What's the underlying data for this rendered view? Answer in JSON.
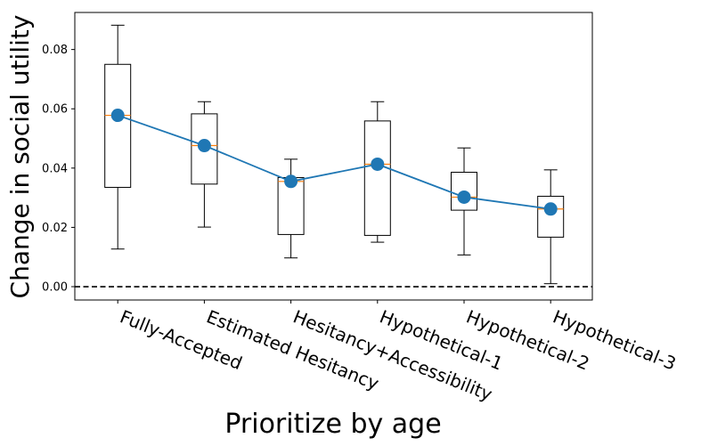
{
  "chart_data": {
    "type": "box",
    "title": "",
    "xlabel": "Prioritize by age",
    "ylabel": "Change in social utility",
    "ylim": [
      -0.0045,
      0.0925
    ],
    "yticks": [
      0.0,
      0.02,
      0.04,
      0.06,
      0.08
    ],
    "ytick_labels": [
      "0.00",
      "0.02",
      "0.04",
      "0.06",
      "0.08"
    ],
    "categories": [
      "Fully-Accepted",
      "Estimated Hesitancy",
      "Hesitancy+Accessibility",
      "Hypothetical-1",
      "Hypothetical-2",
      "Hypothetical-3"
    ],
    "boxes": [
      {
        "whisker_low": 0.0127,
        "q1": 0.0335,
        "median": 0.0578,
        "q3": 0.075,
        "whisker_high": 0.0882
      },
      {
        "whisker_low": 0.0201,
        "q1": 0.0346,
        "median": 0.0476,
        "q3": 0.0583,
        "whisker_high": 0.0624
      },
      {
        "whisker_low": 0.0097,
        "q1": 0.0176,
        "median": 0.0355,
        "q3": 0.0368,
        "whisker_high": 0.043
      },
      {
        "whisker_low": 0.015,
        "q1": 0.0173,
        "median": 0.0413,
        "q3": 0.0559,
        "whisker_high": 0.0624
      },
      {
        "whisker_low": 0.0107,
        "q1": 0.0258,
        "median": 0.0302,
        "q3": 0.0386,
        "whisker_high": 0.0468
      },
      {
        "whisker_low": 0.001,
        "q1": 0.0167,
        "median": 0.0262,
        "q3": 0.0305,
        "whisker_high": 0.0394
      }
    ],
    "mean_series": {
      "values": [
        0.0578,
        0.0476,
        0.0355,
        0.0413,
        0.0302,
        0.0262
      ],
      "color": "#1f77b4"
    },
    "reference_line": {
      "y": 0.0,
      "style": "dashed",
      "color": "#000000"
    },
    "median_color": "#ff7f0e",
    "box_color": "#000000",
    "grid": false,
    "legend": "none"
  }
}
